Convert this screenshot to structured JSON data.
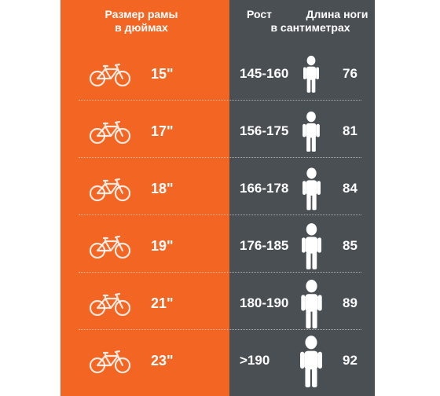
{
  "headers": {
    "frame_size_line1": "Размер рамы",
    "frame_size_line2": "в дюймах",
    "height_line1": "Рост",
    "height_line2": "в сантиметрах",
    "leg_line1": "Длина ноги"
  },
  "colors": {
    "orange": "#f26522",
    "dark_gray": "#4a4f54",
    "white": "#ffffff"
  },
  "icons": {
    "bike": "bicycle-icon",
    "person": "person-icon"
  },
  "rows": [
    {
      "frame": "15\"",
      "height": "145-160",
      "leg": "76"
    },
    {
      "frame": "17\"",
      "height": "156-175",
      "leg": "81"
    },
    {
      "frame": "18\"",
      "height": "166-178",
      "leg": "84"
    },
    {
      "frame": "19\"",
      "height": "176-185",
      "leg": "85"
    },
    {
      "frame": "21\"",
      "height": "180-190",
      "leg": "89"
    },
    {
      "frame": "23\"",
      "height": ">190",
      "leg": "92"
    }
  ]
}
